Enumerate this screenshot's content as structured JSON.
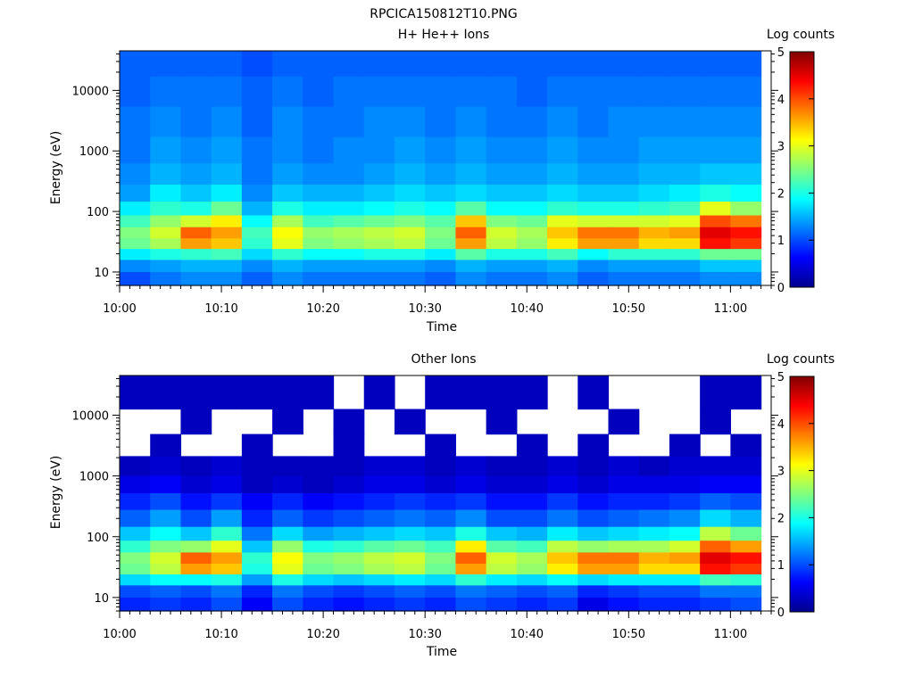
{
  "figure": {
    "title": "RPCICA150812T10.PNG"
  },
  "chart_data": [
    {
      "type": "heatmap",
      "title": "H+ He++ Ions",
      "xlabel": "Time",
      "ylabel": "Energy (eV)",
      "yscale": "log",
      "ylim": [
        6,
        45000
      ],
      "x_ticks": [
        "10:00",
        "10:10",
        "10:20",
        "10:30",
        "10:40",
        "10:50",
        "11:00"
      ],
      "y_ticks": [
        "10",
        "100",
        "1000",
        "10000"
      ],
      "colorbar": {
        "label": "Log counts",
        "range": [
          0,
          5
        ],
        "ticks": [
          "0",
          "1",
          "2",
          "3",
          "4",
          "5"
        ]
      },
      "time_bins": [
        "10:00",
        "10:03",
        "10:06",
        "10:09",
        "10:12",
        "10:15",
        "10:18",
        "10:21",
        "10:24",
        "10:27",
        "10:30",
        "10:33",
        "10:36",
        "10:39",
        "10:42",
        "10:45",
        "10:48",
        "10:51",
        "10:54",
        "10:57",
        "11:00"
      ],
      "energy_bands_ev": [
        8,
        13,
        20,
        30,
        45,
        70,
        110,
        200,
        400,
        1000,
        3000,
        10000,
        30000
      ],
      "log_counts": [
        [
          1.0,
          1.2,
          1.3,
          1.3,
          1.1,
          1.3,
          1.2,
          1.2,
          1.2,
          1.2,
          1.1,
          1.3,
          1.2,
          1.2,
          1.3,
          1.1,
          1.2,
          1.2,
          1.2,
          1.3,
          1.3
        ],
        [
          1.3,
          1.4,
          1.5,
          1.5,
          1.3,
          1.5,
          1.4,
          1.4,
          1.4,
          1.4,
          1.3,
          1.5,
          1.4,
          1.4,
          1.5,
          1.3,
          1.4,
          1.4,
          1.4,
          1.6,
          1.6
        ],
        [
          1.8,
          2.0,
          2.1,
          2.2,
          1.7,
          2.1,
          1.9,
          1.9,
          2.0,
          2.0,
          1.8,
          2.3,
          2.0,
          2.0,
          2.2,
          1.9,
          2.1,
          2.1,
          2.1,
          2.4,
          2.4
        ],
        [
          2.4,
          2.7,
          3.6,
          3.4,
          2.1,
          3.0,
          2.5,
          2.6,
          2.7,
          2.8,
          2.4,
          3.6,
          2.8,
          2.6,
          3.2,
          3.6,
          3.6,
          3.3,
          3.3,
          4.3,
          4.1
        ],
        [
          2.5,
          2.9,
          3.9,
          3.6,
          2.2,
          3.1,
          2.6,
          2.7,
          2.8,
          2.9,
          2.5,
          3.9,
          2.9,
          2.7,
          3.4,
          3.8,
          3.8,
          3.5,
          3.6,
          4.5,
          4.3
        ],
        [
          2.2,
          2.6,
          2.9,
          3.2,
          1.9,
          2.7,
          2.2,
          2.3,
          2.4,
          2.5,
          2.3,
          3.4,
          2.5,
          2.4,
          3.0,
          2.9,
          2.9,
          2.9,
          3.0,
          4.0,
          3.8
        ],
        [
          1.8,
          2.1,
          2.0,
          2.4,
          1.5,
          2.0,
          1.8,
          1.8,
          1.9,
          2.0,
          1.9,
          2.3,
          1.9,
          1.9,
          2.1,
          2.0,
          2.0,
          2.1,
          2.2,
          3.0,
          2.6
        ],
        [
          1.4,
          1.8,
          1.6,
          1.8,
          1.3,
          1.6,
          1.5,
          1.5,
          1.6,
          1.7,
          1.6,
          1.7,
          1.6,
          1.6,
          1.7,
          1.6,
          1.6,
          1.7,
          1.8,
          2.0,
          1.9
        ],
        [
          1.3,
          1.5,
          1.4,
          1.5,
          1.2,
          1.4,
          1.3,
          1.3,
          1.4,
          1.5,
          1.4,
          1.5,
          1.4,
          1.4,
          1.5,
          1.4,
          1.4,
          1.5,
          1.5,
          1.6,
          1.6
        ],
        [
          1.2,
          1.4,
          1.3,
          1.4,
          1.2,
          1.3,
          1.2,
          1.3,
          1.3,
          1.4,
          1.3,
          1.4,
          1.3,
          1.3,
          1.4,
          1.3,
          1.3,
          1.4,
          1.4,
          1.4,
          1.4
        ],
        [
          1.2,
          1.3,
          1.2,
          1.3,
          1.1,
          1.3,
          1.2,
          1.2,
          1.3,
          1.3,
          1.2,
          1.3,
          1.2,
          1.2,
          1.3,
          1.2,
          1.3,
          1.3,
          1.3,
          1.3,
          1.3
        ],
        [
          1.1,
          1.2,
          1.2,
          1.2,
          1.1,
          1.2,
          1.1,
          1.2,
          1.2,
          1.2,
          1.2,
          1.2,
          1.2,
          1.1,
          1.2,
          1.2,
          1.2,
          1.2,
          1.2,
          1.2,
          1.2
        ],
        [
          1.1,
          1.1,
          1.1,
          1.1,
          1.0,
          1.1,
          1.1,
          1.1,
          1.1,
          1.1,
          1.1,
          1.1,
          1.1,
          1.1,
          1.1,
          1.1,
          1.1,
          1.1,
          1.1,
          1.1,
          1.1
        ]
      ]
    },
    {
      "type": "heatmap",
      "title": "Other Ions",
      "xlabel": "Time",
      "ylabel": "Energy (eV)",
      "yscale": "log",
      "ylim": [
        6,
        45000
      ],
      "x_ticks": [
        "10:00",
        "10:10",
        "10:20",
        "10:30",
        "10:40",
        "10:50",
        "11:00"
      ],
      "y_ticks": [
        "10",
        "100",
        "1000",
        "10000"
      ],
      "colorbar": {
        "label": "Log counts",
        "range": [
          0,
          5
        ],
        "ticks": [
          "0",
          "1",
          "2",
          "3",
          "4",
          "5"
        ]
      },
      "time_bins": [
        "10:00",
        "10:03",
        "10:06",
        "10:09",
        "10:12",
        "10:15",
        "10:18",
        "10:21",
        "10:24",
        "10:27",
        "10:30",
        "10:33",
        "10:36",
        "10:39",
        "10:42",
        "10:45",
        "10:48",
        "10:51",
        "10:54",
        "10:57",
        "11:00"
      ],
      "energy_bands_ev": [
        8,
        13,
        20,
        30,
        45,
        70,
        110,
        200,
        400,
        700,
        1500,
        3000,
        8000,
        20000
      ],
      "log_counts": [
        [
          0.8,
          0.9,
          0.8,
          1.0,
          0.6,
          1.0,
          0.8,
          0.7,
          0.8,
          0.9,
          0.8,
          1.0,
          0.9,
          0.8,
          0.9,
          0.5,
          0.7,
          0.8,
          0.8,
          0.9,
          1.0
        ],
        [
          1.0,
          1.1,
          1.0,
          1.2,
          0.8,
          1.2,
          1.0,
          0.9,
          1.0,
          1.1,
          1.0,
          1.2,
          1.1,
          1.0,
          1.1,
          0.8,
          0.9,
          1.0,
          1.0,
          1.2,
          1.2
        ],
        [
          1.7,
          1.9,
          1.9,
          2.0,
          1.4,
          2.0,
          1.7,
          1.6,
          1.7,
          1.8,
          1.7,
          2.1,
          1.8,
          1.7,
          1.9,
          1.7,
          1.8,
          1.8,
          1.8,
          2.2,
          2.1
        ],
        [
          2.4,
          2.8,
          3.6,
          3.4,
          2.0,
          3.0,
          2.4,
          2.5,
          2.7,
          2.8,
          2.4,
          3.6,
          2.8,
          2.6,
          3.2,
          3.6,
          3.6,
          3.3,
          3.3,
          4.3,
          4.1
        ],
        [
          2.5,
          2.9,
          3.9,
          3.6,
          2.1,
          3.1,
          2.5,
          2.6,
          2.8,
          2.9,
          2.5,
          3.9,
          2.9,
          2.7,
          3.4,
          3.8,
          3.8,
          3.5,
          3.6,
          4.5,
          4.3
        ],
        [
          2.1,
          2.5,
          2.6,
          3.0,
          1.6,
          2.6,
          2.0,
          2.1,
          2.3,
          2.4,
          2.2,
          3.2,
          2.3,
          2.2,
          2.8,
          2.6,
          2.7,
          2.7,
          2.9,
          3.9,
          3.6
        ],
        [
          1.6,
          1.9,
          1.6,
          2.1,
          1.2,
          1.7,
          1.4,
          1.5,
          1.6,
          1.7,
          1.6,
          2.0,
          1.6,
          1.5,
          1.8,
          1.6,
          1.7,
          1.8,
          1.9,
          2.8,
          2.4
        ],
        [
          1.1,
          1.4,
          1.0,
          1.4,
          0.8,
          1.1,
          0.9,
          1.0,
          1.1,
          1.2,
          1.1,
          1.3,
          1.0,
          1.0,
          1.2,
          1.0,
          1.1,
          1.2,
          1.3,
          1.7,
          1.5
        ],
        [
          0.8,
          1.0,
          0.7,
          0.9,
          0.6,
          0.8,
          0.6,
          0.7,
          0.8,
          0.9,
          0.8,
          0.9,
          0.7,
          0.7,
          0.9,
          0.7,
          0.8,
          0.8,
          0.9,
          1.1,
          1.0
        ],
        [
          0.5,
          0.6,
          0.4,
          0.5,
          0.3,
          0.4,
          0.3,
          0.4,
          0.5,
          0.5,
          0.4,
          0.5,
          0.4,
          0.4,
          0.5,
          0.4,
          0.5,
          0.5,
          0.5,
          0.6,
          0.6
        ],
        [
          0.3,
          0.4,
          0.3,
          0.4,
          0.3,
          0.3,
          0.3,
          0.3,
          0.4,
          0.4,
          0.3,
          0.4,
          0.3,
          0.3,
          0.4,
          0.3,
          0.4,
          0.3,
          0.4,
          0.4,
          0.4
        ],
        [
          null,
          0.3,
          null,
          null,
          0.3,
          null,
          null,
          0.3,
          null,
          null,
          0.3,
          null,
          null,
          0.3,
          null,
          0.3,
          null,
          null,
          0.3,
          null,
          0.3
        ],
        [
          null,
          null,
          0.3,
          null,
          null,
          0.3,
          null,
          0.3,
          null,
          0.3,
          null,
          null,
          0.3,
          null,
          null,
          null,
          0.3,
          null,
          null,
          0.3,
          null
        ],
        [
          0.3,
          0.3,
          0.3,
          0.3,
          0.3,
          0.3,
          0.3,
          null,
          0.3,
          null,
          0.3,
          0.3,
          0.3,
          0.3,
          null,
          0.3,
          null,
          null,
          null,
          0.3,
          0.3
        ]
      ]
    }
  ]
}
